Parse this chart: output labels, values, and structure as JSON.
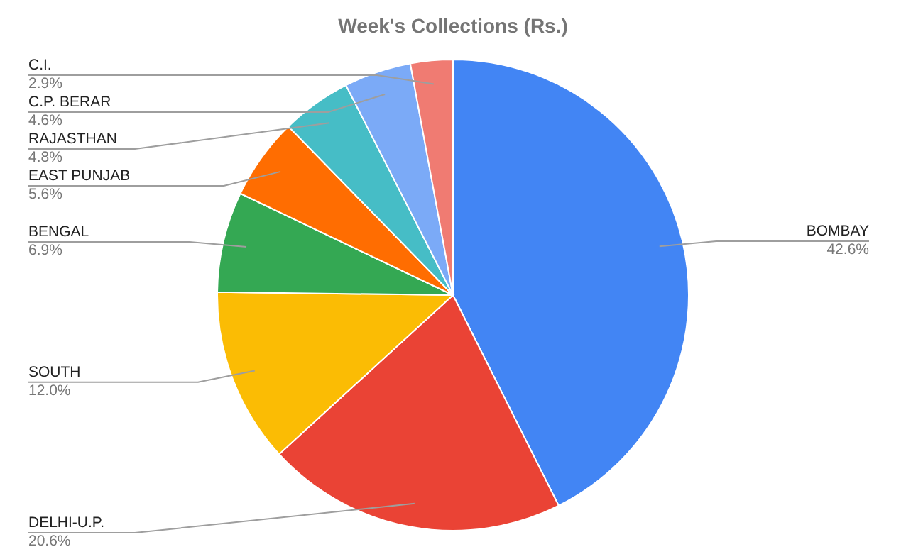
{
  "chart_data": {
    "type": "pie",
    "title": "Week's Collections (Rs.)",
    "categories": [
      "BOMBAY",
      "DELHI-U.P.",
      "SOUTH",
      "BENGAL",
      "EAST PUNJAB",
      "RAJASTHAN",
      "C.P. BERAR",
      "C.I."
    ],
    "values": [
      42.6,
      20.6,
      12.0,
      6.9,
      5.6,
      4.8,
      4.6,
      2.9
    ],
    "value_labels": [
      "42.6%",
      "20.6%",
      "12.0%",
      "6.9%",
      "5.6%",
      "4.8%",
      "4.6%",
      "2.9%"
    ],
    "colors": [
      "#4285f4",
      "#ea4335",
      "#fbbc04",
      "#34a853",
      "#ff6d01",
      "#46bdc6",
      "#7baaf7",
      "#f07b72"
    ]
  }
}
